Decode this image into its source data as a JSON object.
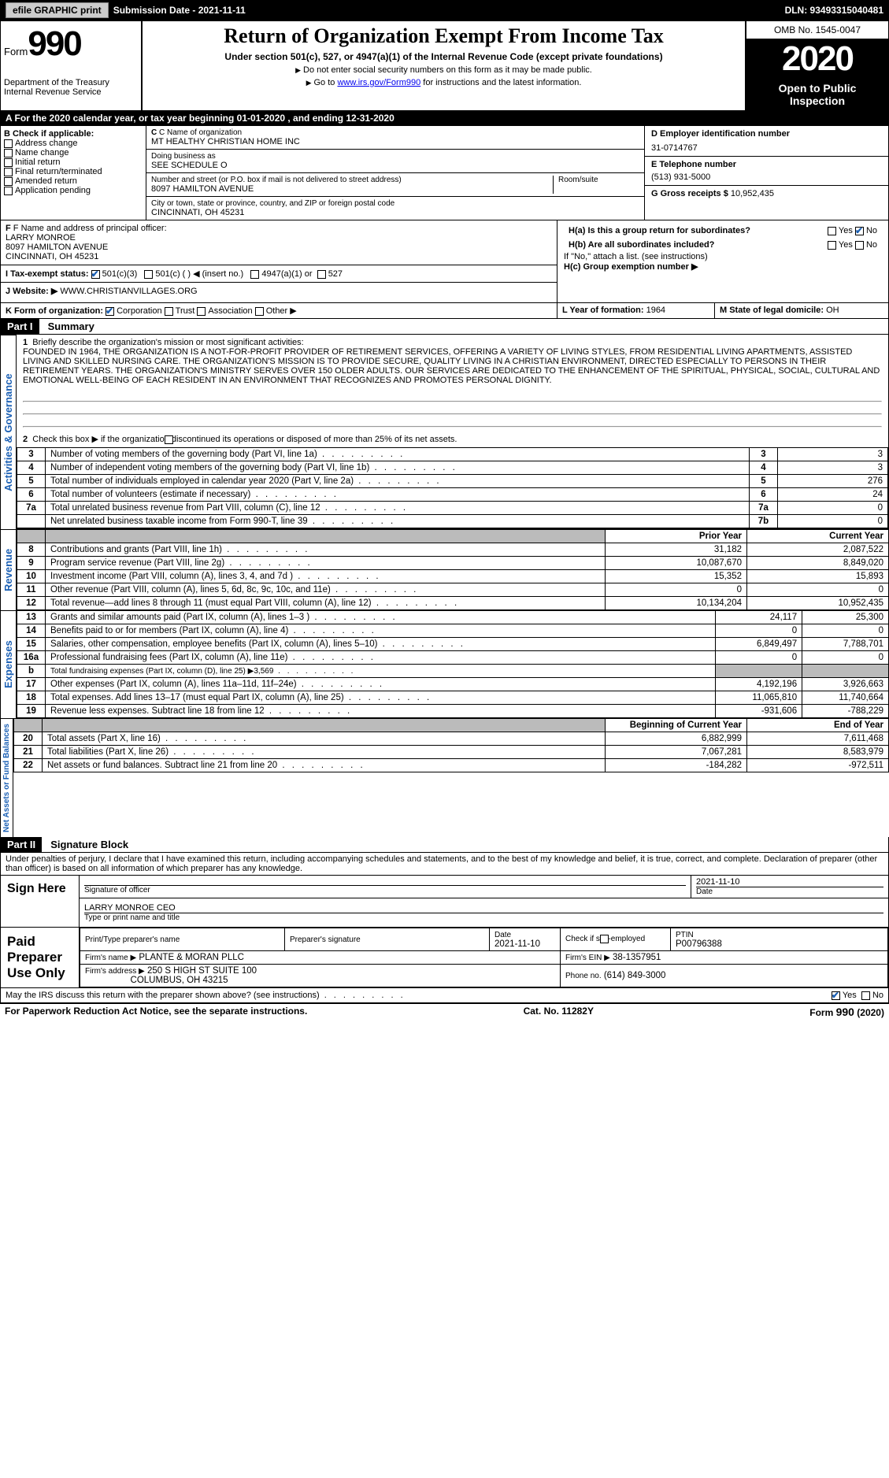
{
  "topbar": {
    "efile": "efile GRAPHIC print",
    "submission_label": "Submission Date - 2021-11-11",
    "dln_label": "DLN: 93493315040481"
  },
  "header": {
    "form_word": "Form",
    "form_no": "990",
    "dept": "Department of the Treasury\nInternal Revenue Service",
    "title": "Return of Organization Exempt From Income Tax",
    "subtitle": "Under section 501(c), 527, or 4947(a)(1) of the Internal Revenue Code (except private foundations)",
    "note1": "Do not enter social security numbers on this form as it may be made public.",
    "note2_pre": "Go to ",
    "note2_link": "www.irs.gov/Form990",
    "note2_post": " for instructions and the latest information.",
    "omb": "OMB No. 1545-0047",
    "year": "2020",
    "open": "Open to Public Inspection"
  },
  "period": "A For the 2020 calendar year, or tax year beginning 01-01-2020   , and ending 12-31-2020",
  "boxB": {
    "label": "B Check if applicable:",
    "items": [
      "Address change",
      "Name change",
      "Initial return",
      "Final return/terminated",
      "Amended return",
      "Application pending"
    ]
  },
  "boxC": {
    "name_lbl": "C Name of organization",
    "name": "MT HEALTHY CHRISTIAN HOME INC",
    "dba_lbl": "Doing business as",
    "dba": "SEE SCHEDULE O",
    "street_lbl": "Number and street (or P.O. box if mail is not delivered to street address)",
    "street": "8097 HAMILTON AVENUE",
    "room_lbl": "Room/suite",
    "city_lbl": "City or town, state or province, country, and ZIP or foreign postal code",
    "city": "CINCINNATI, OH  45231"
  },
  "boxD": {
    "lbl": "D Employer identification number",
    "val": "31-0714767"
  },
  "boxE": {
    "lbl": "E Telephone number",
    "val": "(513) 931-5000"
  },
  "boxG": {
    "lbl": "G Gross receipts $",
    "val": "10,952,435"
  },
  "boxF": {
    "lbl": "F  Name and address of principal officer:",
    "name": "LARRY MONROE",
    "addr1": "8097 HAMILTON AVENUE",
    "addr2": "CINCINNATI, OH  45231"
  },
  "boxH": {
    "a": "H(a)  Is this a group return for subordinates?",
    "b": "H(b)  Are all subordinates included?",
    "bnote": "If \"No,\" attach a list. (see instructions)",
    "c": "H(c)  Group exemption number ▶",
    "yes": "Yes",
    "no": "No"
  },
  "boxI": {
    "lbl": "I   Tax-exempt status:",
    "o1": "501(c)(3)",
    "o2": "501(c) (  ) ◀ (insert no.)",
    "o3": "4947(a)(1) or",
    "o4": "527"
  },
  "boxJ": {
    "lbl": "J   Website: ▶",
    "val": "WWW.CHRISTIANVILLAGES.ORG"
  },
  "boxK": {
    "lbl": "K Form of organization:",
    "o1": "Corporation",
    "o2": "Trust",
    "o3": "Association",
    "o4": "Other ▶"
  },
  "boxL": {
    "lbl": "L Year of formation:",
    "val": "1964"
  },
  "boxM": {
    "lbl": "M State of legal domicile:",
    "val": "OH"
  },
  "part1": {
    "tab": "Part I",
    "title": "Summary",
    "side_activities": "Activities & Governance",
    "side_revenue": "Revenue",
    "side_expenses": "Expenses",
    "side_net": "Net Assets or Fund Balances",
    "l1_lbl": "Briefly describe the organization's mission or most significant activities:",
    "l1_val": "FOUNDED IN 1964, THE ORGANIZATION IS A NOT-FOR-PROFIT PROVIDER OF RETIREMENT SERVICES, OFFERING A VARIETY OF LIVING STYLES, FROM RESIDENTIAL LIVING APARTMENTS, ASSISTED LIVING AND SKILLED NURSING CARE. THE ORGANIZATION'S MISSION IS TO PROVIDE SECURE, QUALITY LIVING IN A CHRISTIAN ENVIRONMENT, DIRECTED ESPECIALLY TO PERSONS IN THEIR RETIREMENT YEARS. THE ORGANIZATION'S MINISTRY SERVES OVER 150 OLDER ADULTS. OUR SERVICES ARE DEDICATED TO THE ENHANCEMENT OF THE SPIRITUAL, PHYSICAL, SOCIAL, CULTURAL AND EMOTIONAL WELL-BEING OF EACH RESIDENT IN AN ENVIRONMENT THAT RECOGNIZES AND PROMOTES PERSONAL DIGNITY.",
    "l2": "Check this box ▶       if the organization discontinued its operations or disposed of more than 25% of its net assets.",
    "rows_gov": [
      {
        "n": "3",
        "t": "Number of voting members of the governing body (Part VI, line 1a)",
        "v": "3"
      },
      {
        "n": "4",
        "t": "Number of independent voting members of the governing body (Part VI, line 1b)",
        "v": "3"
      },
      {
        "n": "5",
        "t": "Total number of individuals employed in calendar year 2020 (Part V, line 2a)",
        "v": "276"
      },
      {
        "n": "6",
        "t": "Total number of volunteers (estimate if necessary)",
        "v": "24"
      },
      {
        "n": "7a",
        "t": "Total unrelated business revenue from Part VIII, column (C), line 12",
        "v": "0"
      },
      {
        "n": "7b",
        "t": "Net unrelated business taxable income from Form 990-T, line 39",
        "v": "0",
        "no_n": true
      }
    ],
    "col_prior": "Prior Year",
    "col_current": "Current Year",
    "rows_rev": [
      {
        "n": "8",
        "t": "Contributions and grants (Part VIII, line 1h)",
        "p": "31,182",
        "c": "2,087,522"
      },
      {
        "n": "9",
        "t": "Program service revenue (Part VIII, line 2g)",
        "p": "10,087,670",
        "c": "8,849,020"
      },
      {
        "n": "10",
        "t": "Investment income (Part VIII, column (A), lines 3, 4, and 7d )",
        "p": "15,352",
        "c": "15,893"
      },
      {
        "n": "11",
        "t": "Other revenue (Part VIII, column (A), lines 5, 6d, 8c, 9c, 10c, and 11e)",
        "p": "0",
        "c": "0"
      },
      {
        "n": "12",
        "t": "Total revenue—add lines 8 through 11 (must equal Part VIII, column (A), line 12)",
        "p": "10,134,204",
        "c": "10,952,435"
      }
    ],
    "rows_exp": [
      {
        "n": "13",
        "t": "Grants and similar amounts paid (Part IX, column (A), lines 1–3 )",
        "p": "24,117",
        "c": "25,300"
      },
      {
        "n": "14",
        "t": "Benefits paid to or for members (Part IX, column (A), line 4)",
        "p": "0",
        "c": "0"
      },
      {
        "n": "15",
        "t": "Salaries, other compensation, employee benefits (Part IX, column (A), lines 5–10)",
        "p": "6,849,497",
        "c": "7,788,701"
      },
      {
        "n": "16a",
        "t": "Professional fundraising fees (Part IX, column (A), line 11e)",
        "p": "0",
        "c": "0"
      },
      {
        "n": "b",
        "t": "Total fundraising expenses (Part IX, column (D), line 25) ▶3,569",
        "p": "",
        "c": "",
        "shade": true,
        "small": true
      },
      {
        "n": "17",
        "t": "Other expenses (Part IX, column (A), lines 11a–11d, 11f–24e)",
        "p": "4,192,196",
        "c": "3,926,663"
      },
      {
        "n": "18",
        "t": "Total expenses. Add lines 13–17 (must equal Part IX, column (A), line 25)",
        "p": "11,065,810",
        "c": "11,740,664"
      },
      {
        "n": "19",
        "t": "Revenue less expenses. Subtract line 18 from line 12",
        "p": "-931,606",
        "c": "-788,229"
      }
    ],
    "col_beg": "Beginning of Current Year",
    "col_end": "End of Year",
    "rows_net": [
      {
        "n": "20",
        "t": "Total assets (Part X, line 16)",
        "p": "6,882,999",
        "c": "7,611,468"
      },
      {
        "n": "21",
        "t": "Total liabilities (Part X, line 26)",
        "p": "7,067,281",
        "c": "8,583,979"
      },
      {
        "n": "22",
        "t": "Net assets or fund balances. Subtract line 21 from line 20",
        "p": "-184,282",
        "c": "-972,511"
      }
    ]
  },
  "part2": {
    "tab": "Part II",
    "title": "Signature Block",
    "perjury": "Under penalties of perjury, I declare that I have examined this return, including accompanying schedules and statements, and to the best of my knowledge and belief, it is true, correct, and complete. Declaration of preparer (other than officer) is based on all information of which preparer has any knowledge.",
    "sign_here": "Sign Here",
    "sig_officer": "Signature of officer",
    "date": "Date",
    "date_val": "2021-11-10",
    "name_title_val": "LARRY MONROE CEO",
    "name_title_lbl": "Type or print name and title",
    "paid": "Paid Preparer Use Only",
    "prep_name_lbl": "Print/Type preparer's name",
    "prep_sig_lbl": "Preparer's signature",
    "prep_date_lbl": "Date",
    "prep_date_val": "2021-11-10",
    "self_emp": "Check        if self-employed",
    "ptin_lbl": "PTIN",
    "ptin_val": "P00796388",
    "firm_name_lbl": "Firm's name    ▶",
    "firm_name": "PLANTE & MORAN PLLC",
    "firm_ein_lbl": "Firm's EIN ▶",
    "firm_ein": "38-1357951",
    "firm_addr_lbl": "Firm's address ▶",
    "firm_addr1": "250 S HIGH ST SUITE 100",
    "firm_addr2": "COLUMBUS, OH  43215",
    "phone_lbl": "Phone no.",
    "phone": "(614) 849-3000",
    "discuss": "May the IRS discuss this return with the preparer shown above? (see instructions)",
    "yes": "Yes",
    "no": "No"
  },
  "footer": {
    "left": "For Paperwork Reduction Act Notice, see the separate instructions.",
    "mid": "Cat. No. 11282Y",
    "right_form": "Form ",
    "right_no": "990",
    "right_yr": " (2020)"
  }
}
